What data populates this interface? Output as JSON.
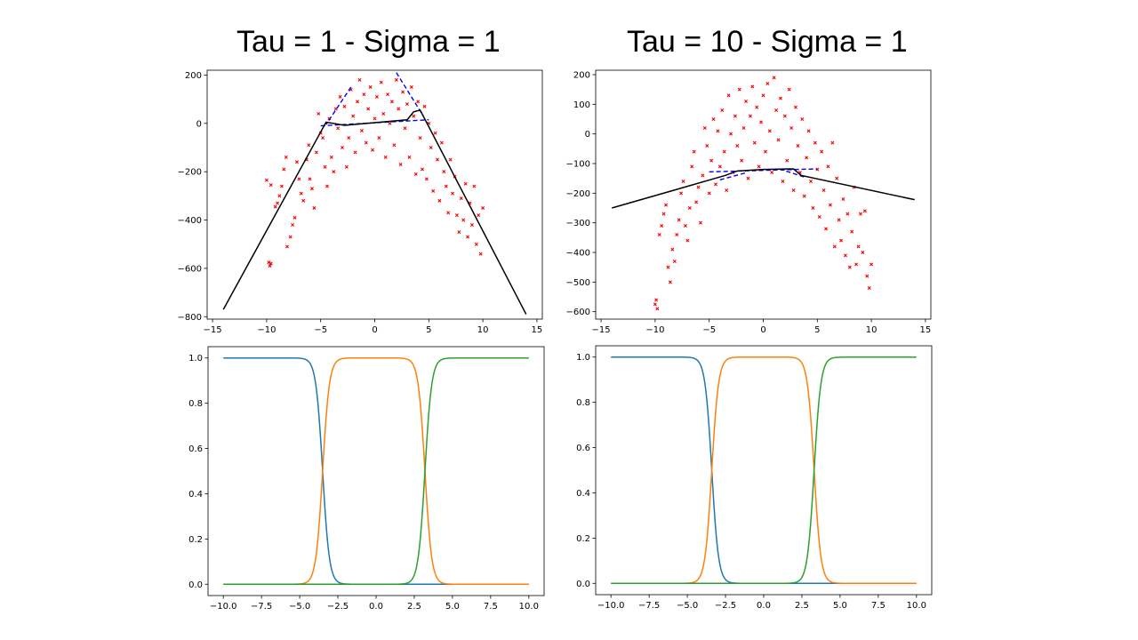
{
  "titles": {
    "left": "Tau = 1  -  Sigma = 1",
    "right": "Tau = 10  -  Sigma = 1"
  },
  "colors": {
    "scatter": "#ff0000",
    "fit": "#000000",
    "experts": "#0000ff",
    "gate_1": "#1f77b4",
    "gate_2": "#ff7f0e",
    "gate_3": "#2ca02c"
  },
  "chart_data": [
    {
      "id": "top-left",
      "type": "scatter",
      "title": "Tau = 1  -  Sigma = 1",
      "xlim": [
        -15.5,
        15.5
      ],
      "ylim": [
        -810,
        220
      ],
      "xticks": [
        -15,
        -10,
        -5,
        0,
        5,
        10,
        15
      ],
      "yticks": [
        -800,
        -600,
        -400,
        -200,
        0,
        200
      ],
      "grid": false,
      "scatter_points": [
        [
          -10,
          -235
        ],
        [
          -9.6,
          -255
        ],
        [
          -9.8,
          -575
        ],
        [
          -9.7,
          -590
        ],
        [
          -9.6,
          -580
        ],
        [
          -9.2,
          -345
        ],
        [
          -9.0,
          -330
        ],
        [
          -8.8,
          -300
        ],
        [
          -8.6,
          -260
        ],
        [
          -8.4,
          -190
        ],
        [
          -8.2,
          -140
        ],
        [
          -8.1,
          -510
        ],
        [
          -7.8,
          -470
        ],
        [
          -7.6,
          -420
        ],
        [
          -7.4,
          -390
        ],
        [
          -7.2,
          -160
        ],
        [
          -7.0,
          -230
        ],
        [
          -6.8,
          -290
        ],
        [
          -6.6,
          -320
        ],
        [
          -6.3,
          -150
        ],
        [
          -6.1,
          -90
        ],
        [
          -6.0,
          -230
        ],
        [
          -5.8,
          -270
        ],
        [
          -5.6,
          -350
        ],
        [
          -5.4,
          -120
        ],
        [
          -5.2,
          40
        ],
        [
          -5.0,
          -40
        ],
        [
          -4.8,
          -60
        ],
        [
          -4.6,
          -180
        ],
        [
          -4.4,
          -260
        ],
        [
          -4.2,
          20
        ],
        [
          -4.0,
          -140
        ],
        [
          -3.8,
          -200
        ],
        [
          -3.6,
          60
        ],
        [
          -3.4,
          -20
        ],
        [
          -3.2,
          110
        ],
        [
          -3.0,
          -100
        ],
        [
          -2.8,
          70
        ],
        [
          -2.6,
          -180
        ],
        [
          -2.4,
          -60
        ],
        [
          -2.2,
          140
        ],
        [
          -2.0,
          30
        ],
        [
          -1.8,
          -120
        ],
        [
          -1.6,
          90
        ],
        [
          -1.4,
          180
        ],
        [
          -1.2,
          -30
        ],
        [
          -1.0,
          120
        ],
        [
          -0.8,
          -80
        ],
        [
          -0.6,
          60
        ],
        [
          -0.4,
          150
        ],
        [
          -0.2,
          -110
        ],
        [
          0.0,
          20
        ],
        [
          0.2,
          110
        ],
        [
          0.4,
          -60
        ],
        [
          0.6,
          170
        ],
        [
          0.8,
          40
        ],
        [
          1.0,
          -140
        ],
        [
          1.2,
          120
        ],
        [
          1.4,
          0
        ],
        [
          1.6,
          90
        ],
        [
          1.8,
          -90
        ],
        [
          2.0,
          180
        ],
        [
          2.2,
          60
        ],
        [
          2.4,
          -170
        ],
        [
          2.6,
          130
        ],
        [
          2.8,
          -20
        ],
        [
          3.0,
          80
        ],
        [
          3.2,
          -140
        ],
        [
          3.4,
          150
        ],
        [
          3.6,
          30
        ],
        [
          3.8,
          -210
        ],
        [
          4.0,
          90
        ],
        [
          4.2,
          -60
        ],
        [
          4.4,
          -190
        ],
        [
          4.6,
          70
        ],
        [
          4.8,
          -230
        ],
        [
          5.0,
          0
        ],
        [
          5.2,
          -100
        ],
        [
          5.4,
          -280
        ],
        [
          5.6,
          -40
        ],
        [
          5.8,
          -150
        ],
        [
          6.0,
          -320
        ],
        [
          6.2,
          -80
        ],
        [
          6.4,
          -200
        ],
        [
          6.6,
          -260
        ],
        [
          6.8,
          -370
        ],
        [
          7.0,
          -150
        ],
        [
          7.2,
          -290
        ],
        [
          7.4,
          -220
        ],
        [
          7.6,
          -380
        ],
        [
          7.8,
          -450
        ],
        [
          8.0,
          -310
        ],
        [
          8.2,
          -400
        ],
        [
          8.4,
          -250
        ],
        [
          8.6,
          -470
        ],
        [
          8.8,
          -330
        ],
        [
          9.0,
          -420
        ],
        [
          9.2,
          -260
        ],
        [
          9.4,
          -500
        ],
        [
          9.6,
          -380
        ],
        [
          9.8,
          -540
        ],
        [
          10.0,
          -350
        ]
      ],
      "fit_line": [
        [
          -14,
          -770
        ],
        [
          -4.5,
          5
        ],
        [
          -2.8,
          -8
        ],
        [
          -2.0,
          -5
        ],
        [
          3.0,
          15
        ],
        [
          3.6,
          48
        ],
        [
          4.2,
          55
        ],
        [
          14,
          -790
        ]
      ],
      "expert_lines": [
        [
          [
            -5,
            -10
          ],
          [
            5,
            15
          ]
        ],
        [
          [
            -2.2,
            150
          ],
          [
            -4.5,
            -5
          ]
        ],
        [
          [
            2.0,
            210
          ],
          [
            4.5,
            30
          ]
        ]
      ]
    },
    {
      "id": "top-right",
      "type": "scatter",
      "title": "Tau = 10  -  Sigma = 1",
      "xlim": [
        -15.5,
        15.5
      ],
      "ylim": [
        -625,
        215
      ],
      "xticks": [
        -15,
        -10,
        -5,
        0,
        5,
        10,
        15
      ],
      "yticks": [
        -600,
        -500,
        -400,
        -300,
        -200,
        -100,
        0,
        100,
        200
      ],
      "grid": false,
      "scatter_points": [
        [
          -10,
          -575
        ],
        [
          -9.8,
          -590
        ],
        [
          -9.9,
          -560
        ],
        [
          -9.6,
          -340
        ],
        [
          -9.4,
          -310
        ],
        [
          -9.2,
          -270
        ],
        [
          -9.0,
          -240
        ],
        [
          -8.8,
          -450
        ],
        [
          -8.6,
          -500
        ],
        [
          -8.4,
          -390
        ],
        [
          -8.2,
          -430
        ],
        [
          -8.0,
          -340
        ],
        [
          -7.8,
          -290
        ],
        [
          -7.6,
          -200
        ],
        [
          -7.4,
          -160
        ],
        [
          -7.2,
          -310
        ],
        [
          -7.0,
          -360
        ],
        [
          -6.8,
          -250
        ],
        [
          -6.6,
          -110
        ],
        [
          -6.4,
          -60
        ],
        [
          -6.2,
          -230
        ],
        [
          -6.0,
          -180
        ],
        [
          -5.8,
          -300
        ],
        [
          -5.6,
          -140
        ],
        [
          -5.4,
          20
        ],
        [
          -5.2,
          -40
        ],
        [
          -5.0,
          -200
        ],
        [
          -4.8,
          -90
        ],
        [
          -4.6,
          50
        ],
        [
          -4.4,
          -170
        ],
        [
          -4.2,
          10
        ],
        [
          -4.0,
          -110
        ],
        [
          -3.8,
          80
        ],
        [
          -3.6,
          -60
        ],
        [
          -3.4,
          -190
        ],
        [
          -3.2,
          130
        ],
        [
          -3.0,
          0
        ],
        [
          -2.8,
          -130
        ],
        [
          -2.6,
          60
        ],
        [
          -2.4,
          -40
        ],
        [
          -2.2,
          150
        ],
        [
          -2.0,
          -90
        ],
        [
          -1.8,
          20
        ],
        [
          -1.6,
          110
        ],
        [
          -1.4,
          -150
        ],
        [
          -1.2,
          60
        ],
        [
          -1.0,
          160
        ],
        [
          -0.8,
          -30
        ],
        [
          -0.6,
          90
        ],
        [
          -0.4,
          -110
        ],
        [
          -0.2,
          40
        ],
        [
          0.0,
          130
        ],
        [
          0.2,
          -60
        ],
        [
          0.4,
          170
        ],
        [
          0.6,
          10
        ],
        [
          0.8,
          -130
        ],
        [
          1.0,
          190
        ],
        [
          1.2,
          80
        ],
        [
          1.4,
          -20
        ],
        [
          1.6,
          120
        ],
        [
          1.8,
          -160
        ],
        [
          2.0,
          60
        ],
        [
          2.2,
          -90
        ],
        [
          2.4,
          150
        ],
        [
          2.6,
          20
        ],
        [
          2.8,
          -190
        ],
        [
          3.0,
          90
        ],
        [
          3.2,
          -40
        ],
        [
          3.4,
          -130
        ],
        [
          3.6,
          50
        ],
        [
          3.8,
          -210
        ],
        [
          4.0,
          -80
        ],
        [
          4.2,
          10
        ],
        [
          4.4,
          -160
        ],
        [
          4.6,
          -250
        ],
        [
          4.8,
          -30
        ],
        [
          5.0,
          -120
        ],
        [
          5.2,
          -280
        ],
        [
          5.4,
          -60
        ],
        [
          5.6,
          -190
        ],
        [
          5.8,
          -320
        ],
        [
          6.0,
          -110
        ],
        [
          6.2,
          -240
        ],
        [
          6.4,
          -30
        ],
        [
          6.6,
          -380
        ],
        [
          6.8,
          -150
        ],
        [
          7.0,
          -290
        ],
        [
          7.2,
          -360
        ],
        [
          7.4,
          -220
        ],
        [
          7.6,
          -410
        ],
        [
          7.8,
          -270
        ],
        [
          8.0,
          -450
        ],
        [
          8.2,
          -330
        ],
        [
          8.4,
          -180
        ],
        [
          8.6,
          -440
        ],
        [
          8.8,
          -380
        ],
        [
          9.0,
          -270
        ],
        [
          9.2,
          -400
        ],
        [
          9.4,
          -260
        ],
        [
          9.6,
          -480
        ],
        [
          9.8,
          -520
        ],
        [
          10.0,
          -440
        ]
      ],
      "fit_line": [
        [
          -14,
          -250
        ],
        [
          -3.5,
          -140
        ],
        [
          -2.4,
          -125
        ],
        [
          0,
          -120
        ],
        [
          2.8,
          -118
        ],
        [
          3.5,
          -140
        ],
        [
          14,
          -222
        ]
      ],
      "expert_lines": [
        [
          [
            -5,
            -128
          ],
          [
            5,
            -118
          ]
        ],
        [
          [
            -4,
            -155
          ],
          [
            -1.5,
            -130
          ]
        ],
        [
          [
            1.5,
            -118
          ],
          [
            4,
            -148
          ]
        ]
      ]
    },
    {
      "id": "bottom-left",
      "type": "line",
      "xlim": [
        -11,
        11
      ],
      "ylim": [
        -0.05,
        1.05
      ],
      "xticks": [
        -10.0,
        -7.5,
        -5.0,
        -2.5,
        0.0,
        2.5,
        5.0,
        7.5,
        10.0
      ],
      "yticks": [
        0.0,
        0.2,
        0.4,
        0.6,
        0.8,
        1.0
      ],
      "grid": false,
      "x_range": [
        -10,
        10
      ],
      "boundaries": [
        -3.5,
        3.2
      ],
      "steepness": 4.5
    },
    {
      "id": "bottom-right",
      "type": "line",
      "xlim": [
        -11,
        11
      ],
      "ylim": [
        -0.05,
        1.05
      ],
      "xticks": [
        -10.0,
        -7.5,
        -5.0,
        -2.5,
        0.0,
        2.5,
        5.0,
        7.5,
        10.0
      ],
      "yticks": [
        0.0,
        0.2,
        0.4,
        0.6,
        0.8,
        1.0
      ],
      "grid": false,
      "x_range": [
        -10,
        10
      ],
      "boundaries": [
        -3.4,
        3.3
      ],
      "steepness": 4.5
    }
  ]
}
